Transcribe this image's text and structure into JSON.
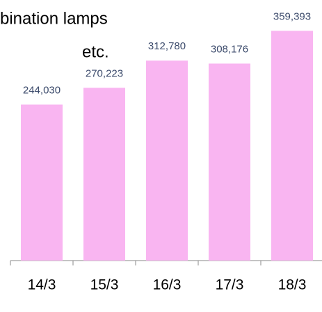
{
  "chart_data": {
    "type": "bar",
    "title_lines": [
      "bination lamps",
      "etc."
    ],
    "categories": [
      "14/3",
      "15/3",
      "16/3",
      "17/3",
      "18/3"
    ],
    "values": [
      244030,
      270223,
      312780,
      308176,
      359393
    ],
    "value_labels": [
      "244,030",
      "270,223",
      "312,780",
      "308,176",
      "359,393"
    ],
    "color": "#f9b5f1",
    "ylim": [
      0,
      400000
    ]
  }
}
